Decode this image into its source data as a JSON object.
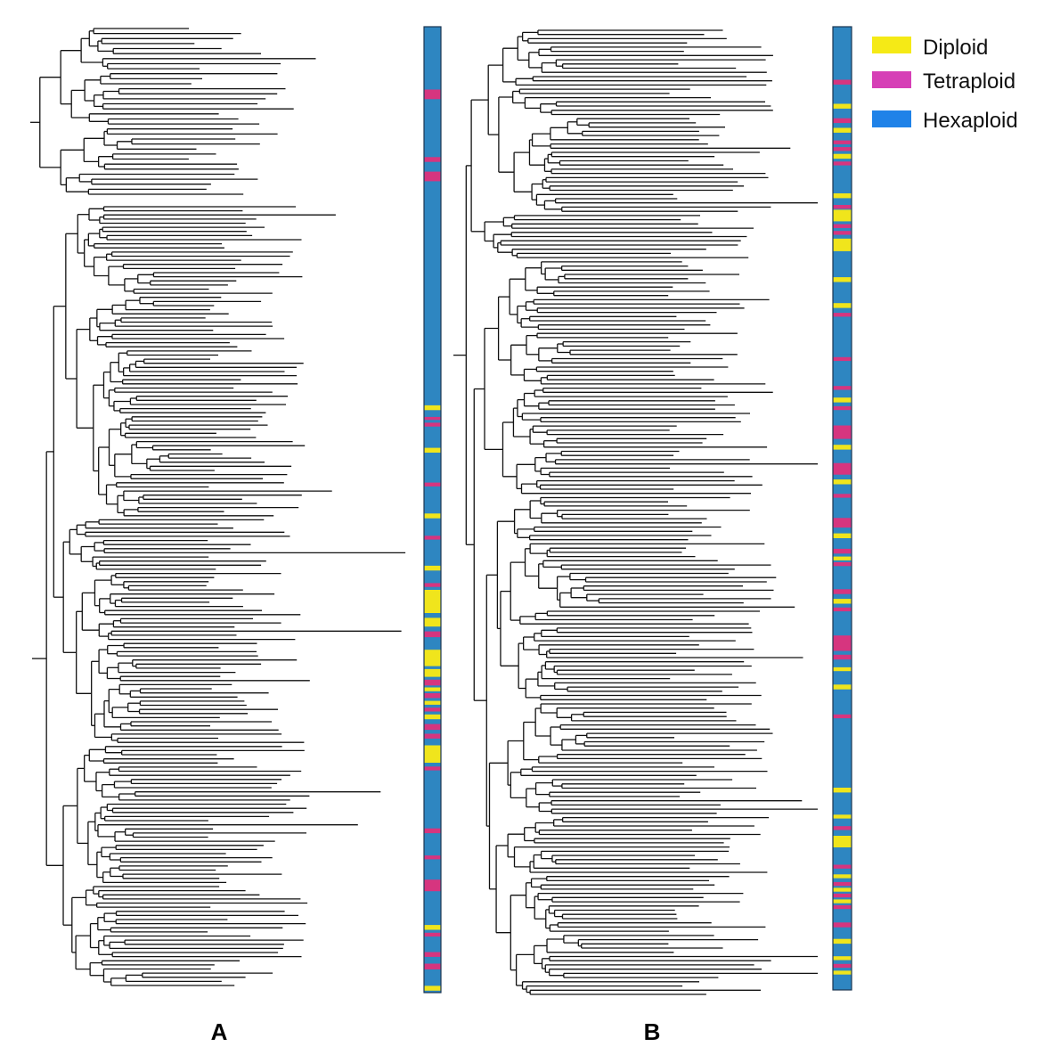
{
  "legend": {
    "items": [
      {
        "label": "Diploid",
        "color": "#f5ea16"
      },
      {
        "label": "Tetraploid",
        "color": "#d63fb6"
      },
      {
        "label": "Hexaploid",
        "color": "#1f82e8"
      }
    ]
  },
  "strip_colors": {
    "diploid": "#f0e51c",
    "tetraploid": "#d6357f",
    "hexaploid": "#2e86c1"
  },
  "panels": [
    {
      "label": "A",
      "ploidy_marks": [
        {
          "pos": 0.065,
          "span": 0.01,
          "type": "tetraploid"
        },
        {
          "pos": 0.135,
          "span": 0.005,
          "type": "tetraploid"
        },
        {
          "pos": 0.15,
          "span": 0.01,
          "type": "tetraploid"
        },
        {
          "pos": 0.392,
          "span": 0.005,
          "type": "diploid"
        },
        {
          "pos": 0.404,
          "span": 0.003,
          "type": "tetraploid"
        },
        {
          "pos": 0.41,
          "span": 0.004,
          "type": "tetraploid"
        },
        {
          "pos": 0.436,
          "span": 0.005,
          "type": "diploid"
        },
        {
          "pos": 0.472,
          "span": 0.004,
          "type": "tetraploid"
        },
        {
          "pos": 0.504,
          "span": 0.005,
          "type": "diploid"
        },
        {
          "pos": 0.527,
          "span": 0.004,
          "type": "tetraploid"
        },
        {
          "pos": 0.558,
          "span": 0.005,
          "type": "diploid"
        },
        {
          "pos": 0.576,
          "span": 0.004,
          "type": "tetraploid"
        },
        {
          "pos": 0.583,
          "span": 0.024,
          "type": "diploid"
        },
        {
          "pos": 0.612,
          "span": 0.009,
          "type": "diploid"
        },
        {
          "pos": 0.626,
          "span": 0.006,
          "type": "tetraploid"
        },
        {
          "pos": 0.645,
          "span": 0.017,
          "type": "diploid"
        },
        {
          "pos": 0.665,
          "span": 0.008,
          "type": "diploid"
        },
        {
          "pos": 0.676,
          "span": 0.006,
          "type": "tetraploid"
        },
        {
          "pos": 0.684,
          "span": 0.004,
          "type": "diploid"
        },
        {
          "pos": 0.69,
          "span": 0.005,
          "type": "tetraploid"
        },
        {
          "pos": 0.698,
          "span": 0.004,
          "type": "diploid"
        },
        {
          "pos": 0.705,
          "span": 0.004,
          "type": "tetraploid"
        },
        {
          "pos": 0.712,
          "span": 0.005,
          "type": "diploid"
        },
        {
          "pos": 0.722,
          "span": 0.006,
          "type": "tetraploid"
        },
        {
          "pos": 0.732,
          "span": 0.005,
          "type": "tetraploid"
        },
        {
          "pos": 0.744,
          "span": 0.018,
          "type": "diploid"
        },
        {
          "pos": 0.766,
          "span": 0.004,
          "type": "tetraploid"
        },
        {
          "pos": 0.83,
          "span": 0.005,
          "type": "tetraploid"
        },
        {
          "pos": 0.858,
          "span": 0.004,
          "type": "tetraploid"
        },
        {
          "pos": 0.883,
          "span": 0.012,
          "type": "tetraploid"
        },
        {
          "pos": 0.93,
          "span": 0.005,
          "type": "diploid"
        },
        {
          "pos": 0.938,
          "span": 0.004,
          "type": "tetraploid"
        },
        {
          "pos": 0.958,
          "span": 0.005,
          "type": "tetraploid"
        },
        {
          "pos": 0.97,
          "span": 0.006,
          "type": "tetraploid"
        },
        {
          "pos": 0.993,
          "span": 0.005,
          "type": "diploid"
        }
      ]
    },
    {
      "label": "B",
      "ploidy_marks": [
        {
          "pos": 0.055,
          "span": 0.005,
          "type": "tetraploid"
        },
        {
          "pos": 0.08,
          "span": 0.005,
          "type": "diploid"
        },
        {
          "pos": 0.095,
          "span": 0.005,
          "type": "tetraploid"
        },
        {
          "pos": 0.105,
          "span": 0.005,
          "type": "diploid"
        },
        {
          "pos": 0.118,
          "span": 0.004,
          "type": "tetraploid"
        },
        {
          "pos": 0.125,
          "span": 0.004,
          "type": "tetraploid"
        },
        {
          "pos": 0.132,
          "span": 0.005,
          "type": "diploid"
        },
        {
          "pos": 0.14,
          "span": 0.004,
          "type": "tetraploid"
        },
        {
          "pos": 0.173,
          "span": 0.005,
          "type": "diploid"
        },
        {
          "pos": 0.185,
          "span": 0.004,
          "type": "tetraploid"
        },
        {
          "pos": 0.19,
          "span": 0.012,
          "type": "diploid"
        },
        {
          "pos": 0.205,
          "span": 0.004,
          "type": "tetraploid"
        },
        {
          "pos": 0.212,
          "span": 0.004,
          "type": "tetraploid"
        },
        {
          "pos": 0.22,
          "span": 0.013,
          "type": "diploid"
        },
        {
          "pos": 0.26,
          "span": 0.005,
          "type": "diploid"
        },
        {
          "pos": 0.287,
          "span": 0.005,
          "type": "diploid"
        },
        {
          "pos": 0.297,
          "span": 0.004,
          "type": "tetraploid"
        },
        {
          "pos": 0.343,
          "span": 0.004,
          "type": "tetraploid"
        },
        {
          "pos": 0.373,
          "span": 0.004,
          "type": "tetraploid"
        },
        {
          "pos": 0.385,
          "span": 0.005,
          "type": "diploid"
        },
        {
          "pos": 0.394,
          "span": 0.004,
          "type": "tetraploid"
        },
        {
          "pos": 0.414,
          "span": 0.014,
          "type": "tetraploid"
        },
        {
          "pos": 0.434,
          "span": 0.005,
          "type": "diploid"
        },
        {
          "pos": 0.453,
          "span": 0.012,
          "type": "tetraploid"
        },
        {
          "pos": 0.47,
          "span": 0.005,
          "type": "diploid"
        },
        {
          "pos": 0.485,
          "span": 0.004,
          "type": "tetraploid"
        },
        {
          "pos": 0.51,
          "span": 0.01,
          "type": "tetraploid"
        },
        {
          "pos": 0.526,
          "span": 0.005,
          "type": "diploid"
        },
        {
          "pos": 0.542,
          "span": 0.005,
          "type": "tetraploid"
        },
        {
          "pos": 0.55,
          "span": 0.004,
          "type": "diploid"
        },
        {
          "pos": 0.556,
          "span": 0.004,
          "type": "tetraploid"
        },
        {
          "pos": 0.584,
          "span": 0.005,
          "type": "tetraploid"
        },
        {
          "pos": 0.594,
          "span": 0.005,
          "type": "diploid"
        },
        {
          "pos": 0.603,
          "span": 0.004,
          "type": "tetraploid"
        },
        {
          "pos": 0.632,
          "span": 0.016,
          "type": "tetraploid"
        },
        {
          "pos": 0.652,
          "span": 0.005,
          "type": "tetraploid"
        },
        {
          "pos": 0.665,
          "span": 0.004,
          "type": "diploid"
        },
        {
          "pos": 0.683,
          "span": 0.005,
          "type": "diploid"
        },
        {
          "pos": 0.714,
          "span": 0.004,
          "type": "tetraploid"
        },
        {
          "pos": 0.79,
          "span": 0.005,
          "type": "diploid"
        },
        {
          "pos": 0.818,
          "span": 0.004,
          "type": "diploid"
        },
        {
          "pos": 0.83,
          "span": 0.004,
          "type": "tetraploid"
        },
        {
          "pos": 0.84,
          "span": 0.012,
          "type": "diploid"
        },
        {
          "pos": 0.87,
          "span": 0.004,
          "type": "tetraploid"
        },
        {
          "pos": 0.88,
          "span": 0.004,
          "type": "diploid"
        },
        {
          "pos": 0.888,
          "span": 0.004,
          "type": "tetraploid"
        },
        {
          "pos": 0.894,
          "span": 0.004,
          "type": "diploid"
        },
        {
          "pos": 0.9,
          "span": 0.004,
          "type": "tetraploid"
        },
        {
          "pos": 0.906,
          "span": 0.004,
          "type": "diploid"
        },
        {
          "pos": 0.912,
          "span": 0.004,
          "type": "tetraploid"
        },
        {
          "pos": 0.93,
          "span": 0.005,
          "type": "tetraploid"
        },
        {
          "pos": 0.947,
          "span": 0.005,
          "type": "diploid"
        },
        {
          "pos": 0.965,
          "span": 0.004,
          "type": "diploid"
        },
        {
          "pos": 0.973,
          "span": 0.004,
          "type": "tetraploid"
        },
        {
          "pos": 0.98,
          "span": 0.004,
          "type": "diploid"
        }
      ]
    }
  ]
}
